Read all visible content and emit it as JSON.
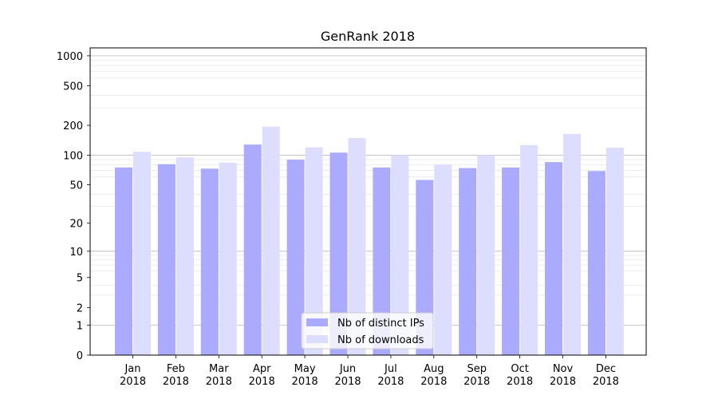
{
  "chart_data": {
    "type": "bar",
    "title": "GenRank 2018",
    "xlabel": "",
    "ylabel": "",
    "yscale": "log1p",
    "ylim": [
      0,
      1200
    ],
    "yticks": [
      0,
      1,
      2,
      5,
      10,
      20,
      50,
      100,
      200,
      500,
      1000
    ],
    "grid": true,
    "legend_position": "bottom-center",
    "categories": [
      [
        "Jan",
        "2018"
      ],
      [
        "Feb",
        "2018"
      ],
      [
        "Mar",
        "2018"
      ],
      [
        "Apr",
        "2018"
      ],
      [
        "May",
        "2018"
      ],
      [
        "Jun",
        "2018"
      ],
      [
        "Jul",
        "2018"
      ],
      [
        "Aug",
        "2018"
      ],
      [
        "Sep",
        "2018"
      ],
      [
        "Oct",
        "2018"
      ],
      [
        "Nov",
        "2018"
      ],
      [
        "Dec",
        "2018"
      ]
    ],
    "series": [
      {
        "name": "Nb of distinct IPs",
        "color": "#aaaaff",
        "values": [
          75,
          81,
          73,
          128,
          90,
          106,
          75,
          56,
          74,
          75,
          85,
          69
        ]
      },
      {
        "name": "Nb of downloads",
        "color": "#ddddff",
        "values": [
          108,
          95,
          84,
          194,
          120,
          149,
          100,
          80,
          100,
          126,
          164,
          119
        ]
      }
    ]
  }
}
